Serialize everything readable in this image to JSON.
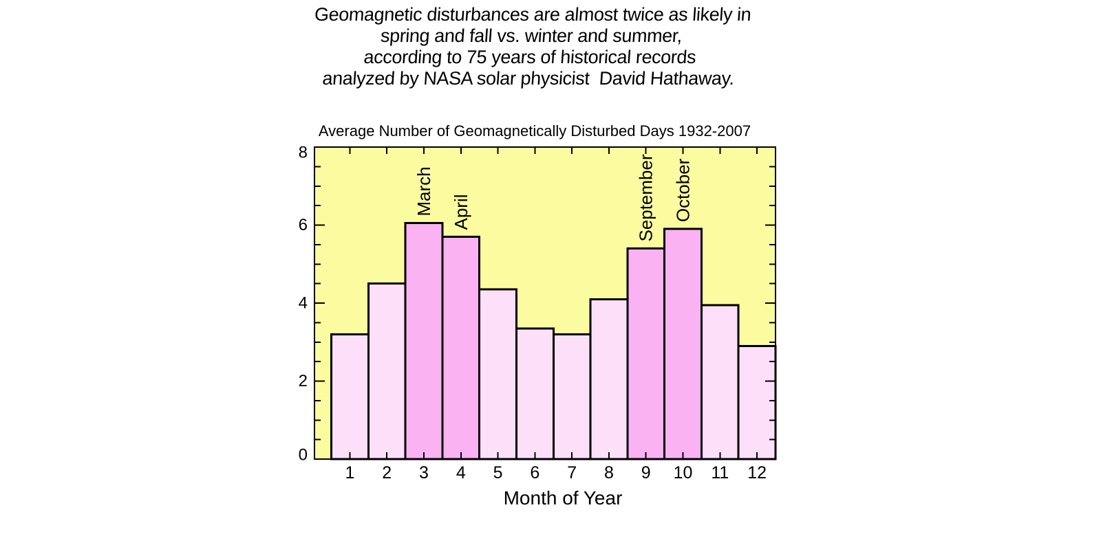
{
  "header": {
    "lines": [
      "Geomagnetic disturbances are almost twice as likely in",
      "spring and fall vs. winter and summer,",
      "according to 75 years of historical records",
      "analyzed by NASA solar physicist  David Hathaway."
    ]
  },
  "chart_data": {
    "type": "bar",
    "title": "Average Number of Geomagnetically Disturbed Days 1932-2007",
    "xlabel": "Month of Year",
    "ylabel": "",
    "categories": [
      "1",
      "2",
      "3",
      "4",
      "5",
      "6",
      "7",
      "8",
      "9",
      "10",
      "11",
      "12"
    ],
    "values": [
      3.2,
      4.5,
      6.05,
      5.7,
      4.35,
      3.35,
      3.2,
      4.1,
      5.4,
      5.9,
      3.95,
      2.9
    ],
    "highlighted_categories": [
      "3",
      "4",
      "9",
      "10"
    ],
    "annotations": [
      {
        "category": "3",
        "label": "March"
      },
      {
        "category": "4",
        "label": "April"
      },
      {
        "category": "9",
        "label": "September"
      },
      {
        "category": "10",
        "label": "October"
      }
    ],
    "ylim": [
      0,
      8
    ],
    "y_major_ticks": [
      0,
      2,
      4,
      6,
      8
    ],
    "y_minor_step": 0.5,
    "grid": false,
    "legend": false,
    "colors": {
      "plot_background": "#FBFBA0",
      "bar_fill": "#FCE0F9",
      "bar_highlight_fill": "#FAB2F3",
      "bar_border": "#000000",
      "text": "#000000"
    }
  }
}
